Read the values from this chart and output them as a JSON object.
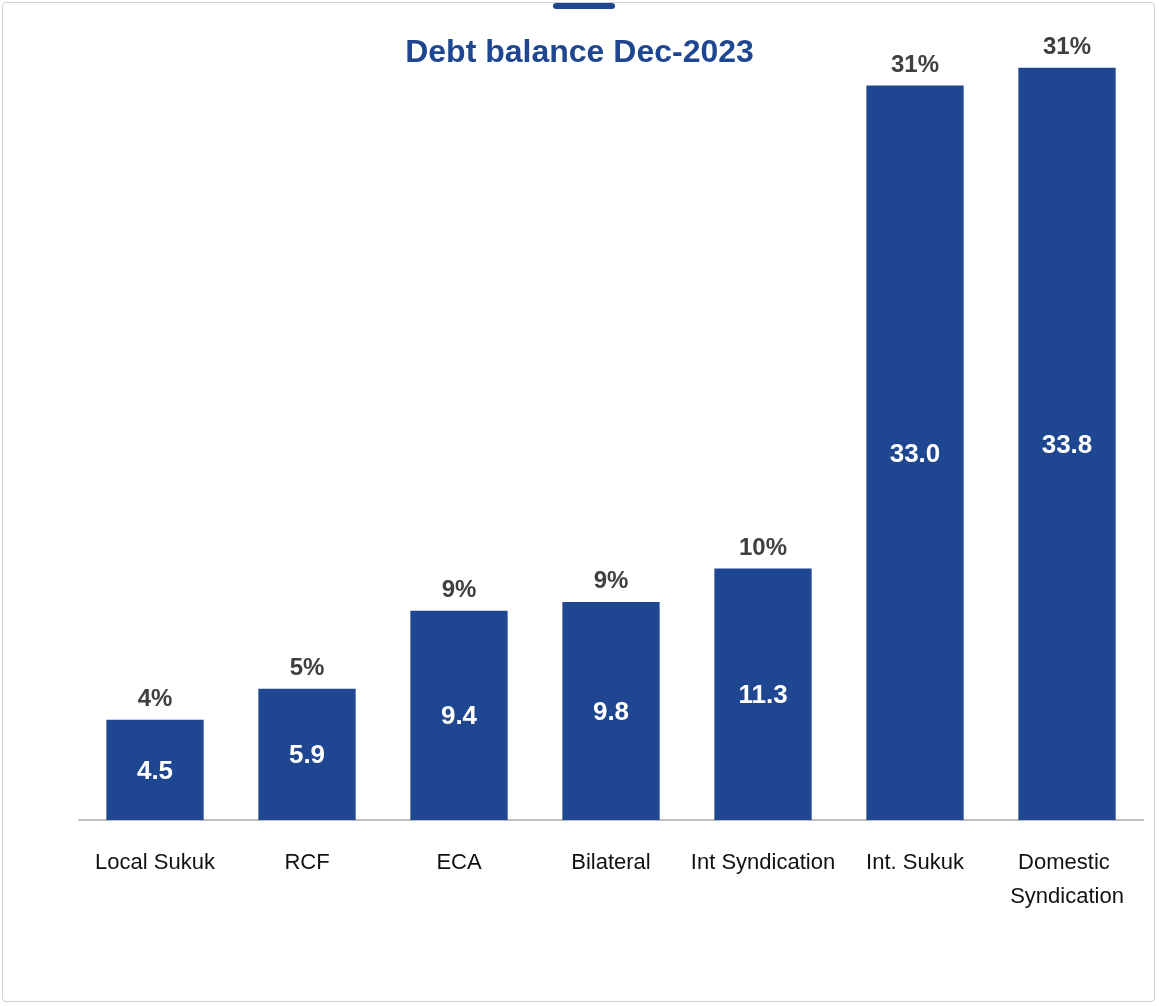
{
  "chart_data": {
    "type": "bar",
    "title": "Debt balance Dec-2023",
    "categories": [
      "Local Sukuk",
      "RCF",
      "ECA",
      "Bilateral",
      "Int Syndication",
      "Int. Sukuk",
      "Domestic Syndication"
    ],
    "values": [
      4.5,
      5.9,
      9.4,
      9.8,
      11.3,
      33.0,
      33.8
    ],
    "color": "#1f4690",
    "value_labels": [
      "4.5",
      "5.9",
      "9.4",
      "9.8",
      "11.3",
      "33.0",
      "33.8"
    ],
    "grid": false,
    "annotations": [
      {
        "text": "4%",
        "x": "Local Sukuk",
        "y": 4.5
      },
      {
        "text": "5%",
        "x": "RCF",
        "y": 5.9
      },
      {
        "text": "9%",
        "x": "ECA",
        "y": 9.4
      },
      {
        "text": "9%",
        "x": "Bilateral",
        "y": 9.8
      },
      {
        "text": "10%",
        "x": "Int Syndication",
        "y": 11.3
      },
      {
        "text": "31%",
        "x": "Int. Sukuk",
        "y": 33.0
      },
      {
        "text": "31%",
        "x": "Domestic Syndication",
        "y": 33.8
      }
    ]
  }
}
